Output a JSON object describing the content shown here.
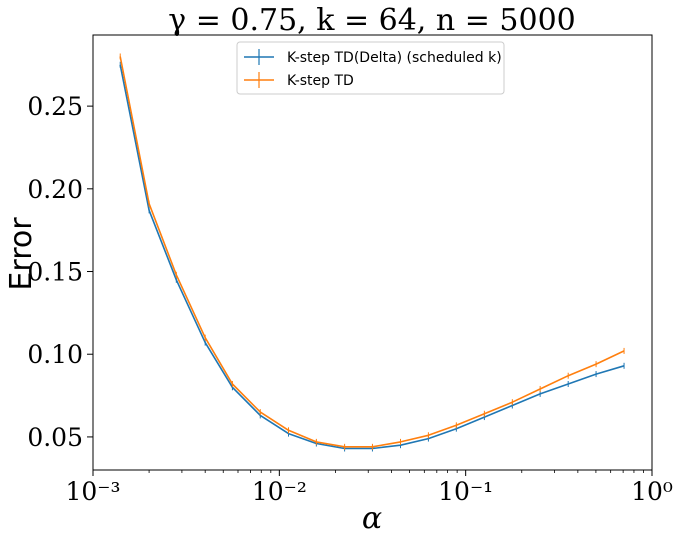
{
  "chart_data": {
    "type": "line",
    "title": "γ = 0.75, k = 64, n = 5000",
    "xlabel": "α",
    "ylabel": "Error",
    "xscale": "log",
    "xlim": [
      0.001,
      1
    ],
    "ylim": [
      0.03,
      0.293
    ],
    "x_tick_labels": [
      "10⁻³",
      "10⁻²",
      "10⁻¹",
      "10⁰"
    ],
    "y_tick_labels": [
      "0.05",
      "0.10",
      "0.15",
      "0.20",
      "0.25"
    ],
    "legend_position": "top-center",
    "grid": false,
    "series": [
      {
        "name": "K-step TD(Delta) (scheduled k)",
        "color": "#1f77b4",
        "x": [
          0.0014,
          0.002,
          0.0028,
          0.004,
          0.0056,
          0.0079,
          0.0112,
          0.0158,
          0.0224,
          0.0316,
          0.0447,
          0.0631,
          0.0891,
          0.126,
          0.178,
          0.251,
          0.355,
          0.501,
          0.708
        ],
        "y": [
          0.275,
          0.187,
          0.145,
          0.107,
          0.08,
          0.063,
          0.052,
          0.046,
          0.043,
          0.043,
          0.045,
          0.049,
          0.055,
          0.062,
          0.069,
          0.076,
          0.082,
          0.088,
          0.093
        ]
      },
      {
        "name": "K-step TD",
        "color": "#ff7f0e",
        "x": [
          0.0014,
          0.002,
          0.0028,
          0.004,
          0.0056,
          0.0079,
          0.0112,
          0.0158,
          0.0224,
          0.0316,
          0.0447,
          0.0631,
          0.0891,
          0.126,
          0.178,
          0.251,
          0.355,
          0.501,
          0.708
        ],
        "y": [
          0.28,
          0.191,
          0.148,
          0.11,
          0.082,
          0.065,
          0.054,
          0.047,
          0.044,
          0.044,
          0.047,
          0.051,
          0.057,
          0.064,
          0.071,
          0.079,
          0.087,
          0.094,
          0.102
        ]
      }
    ]
  }
}
